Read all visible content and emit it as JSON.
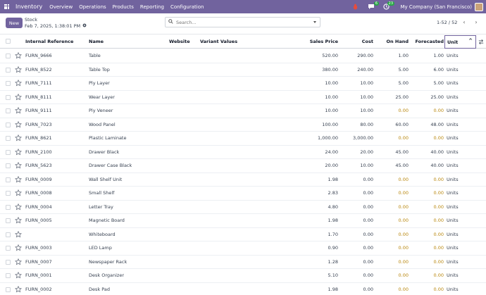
{
  "nav": {
    "app": "Inventory",
    "menus": [
      "Overview",
      "Operations",
      "Products",
      "Reporting",
      "Configuration"
    ],
    "badges": {
      "chat": "6",
      "activity": "23"
    },
    "company": "My Company (San Francisco)",
    "colors": {
      "brand": "#71639e",
      "warning": "#b8860b"
    }
  },
  "control": {
    "new_label": "New",
    "breadcrumb": "Stock",
    "subtitle": "Feb 7, 2025, 1:38:01 PM",
    "search_placeholder": "Search...",
    "pager": "1-52 / 52"
  },
  "columns": {
    "ref": "Internal Reference",
    "name": "Name",
    "website": "Website",
    "variants": "Variant Values",
    "price": "Sales Price",
    "cost": "Cost",
    "onhand": "On Hand",
    "forecast": "Forecasted",
    "unit": "Unit"
  },
  "rows": [
    {
      "ref": "FURN_9666",
      "name": "Table",
      "price": "520.00",
      "cost": "290.00",
      "onhand": "1.00",
      "forecast": "1.00",
      "unit": "Units"
    },
    {
      "ref": "FURN_8522",
      "name": "Table Top",
      "price": "380.00",
      "cost": "240.00",
      "onhand": "5.00",
      "forecast": "6.00",
      "unit": "Units"
    },
    {
      "ref": "FURN_7111",
      "name": "Ply Layer",
      "price": "10.00",
      "cost": "10.00",
      "onhand": "5.00",
      "forecast": "5.00",
      "unit": "Units"
    },
    {
      "ref": "FURN_8111",
      "name": "Wear Layer",
      "price": "10.00",
      "cost": "10.00",
      "onhand": "25.00",
      "forecast": "25.00",
      "unit": "Units"
    },
    {
      "ref": "FURN_9111",
      "name": "Ply Veneer",
      "price": "10.00",
      "cost": "10.00",
      "onhand": "0.00",
      "forecast": "0.00",
      "unit": "Units"
    },
    {
      "ref": "FURN_7023",
      "name": "Wood Panel",
      "price": "100.00",
      "cost": "80.00",
      "onhand": "60.00",
      "forecast": "48.00",
      "unit": "Units"
    },
    {
      "ref": "FURN_8621",
      "name": "Plastic Laminate",
      "price": "1,000.00",
      "cost": "3,000.00",
      "onhand": "0.00",
      "forecast": "0.00",
      "unit": "Units"
    },
    {
      "ref": "FURN_2100",
      "name": "Drawer Black",
      "price": "24.00",
      "cost": "20.00",
      "onhand": "45.00",
      "forecast": "40.00",
      "unit": "Units"
    },
    {
      "ref": "FURN_5623",
      "name": "Drawer Case Black",
      "price": "20.00",
      "cost": "10.00",
      "onhand": "45.00",
      "forecast": "40.00",
      "unit": "Units"
    },
    {
      "ref": "FURN_0009",
      "name": "Wall Shelf Unit",
      "price": "1.98",
      "cost": "0.00",
      "onhand": "0.00",
      "forecast": "0.00",
      "unit": "Units"
    },
    {
      "ref": "FURN_0008",
      "name": "Small Shelf",
      "price": "2.83",
      "cost": "0.00",
      "onhand": "0.00",
      "forecast": "0.00",
      "unit": "Units"
    },
    {
      "ref": "FURN_0004",
      "name": "Letter Tray",
      "price": "4.80",
      "cost": "0.00",
      "onhand": "0.00",
      "forecast": "0.00",
      "unit": "Units"
    },
    {
      "ref": "FURN_0005",
      "name": "Magnetic Board",
      "price": "1.98",
      "cost": "0.00",
      "onhand": "0.00",
      "forecast": "0.00",
      "unit": "Units"
    },
    {
      "ref": "",
      "name": "Whiteboard",
      "price": "1.70",
      "cost": "0.00",
      "onhand": "0.00",
      "forecast": "0.00",
      "unit": "Units"
    },
    {
      "ref": "FURN_0003",
      "name": "LED Lamp",
      "price": "0.90",
      "cost": "0.00",
      "onhand": "0.00",
      "forecast": "0.00",
      "unit": "Units"
    },
    {
      "ref": "FURN_0007",
      "name": "Newspaper Rack",
      "price": "1.28",
      "cost": "0.00",
      "onhand": "0.00",
      "forecast": "0.00",
      "unit": "Units"
    },
    {
      "ref": "FURN_0001",
      "name": "Desk Organizer",
      "price": "5.10",
      "cost": "0.00",
      "onhand": "0.00",
      "forecast": "0.00",
      "unit": "Units"
    },
    {
      "ref": "FURN_0002",
      "name": "Desk Pad",
      "price": "1.98",
      "cost": "0.00",
      "onhand": "0.00",
      "forecast": "0.00",
      "unit": "Units"
    }
  ]
}
